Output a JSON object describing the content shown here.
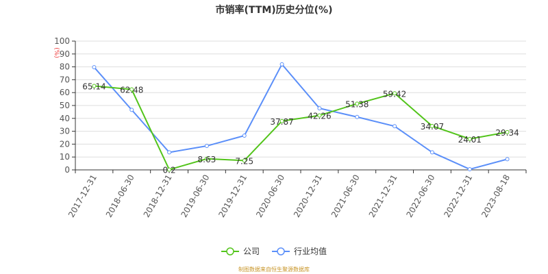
{
  "chart_data": {
    "type": "line",
    "title": "市销率(TTM)历史分位(%)",
    "ylabel": "(%)",
    "ylim": [
      0,
      100
    ],
    "yticks": [
      0,
      10,
      20,
      30,
      40,
      50,
      60,
      70,
      80,
      90,
      100
    ],
    "grid": true,
    "legend_position": "bottom",
    "categories": [
      "2017-12-31",
      "2018-06-30",
      "2018-12-31",
      "2019-06-30",
      "2019-12-31",
      "2020-06-30",
      "2020-12-31",
      "2021-06-30",
      "2021-12-31",
      "2022-06-30",
      "2022-12-31",
      "2023-08-18"
    ],
    "series": [
      {
        "name": "公司",
        "color": "#52c41a",
        "show_labels": true,
        "values": [
          65.14,
          62.48,
          0.2,
          8.63,
          7.25,
          37.87,
          42.26,
          51.38,
          59.42,
          34.07,
          24.01,
          29.34
        ]
      },
      {
        "name": "行业均值",
        "color": "#5b8ff9",
        "show_labels": false,
        "values": [
          79.7,
          46.6,
          13.6,
          18.6,
          26.6,
          82.0,
          47.8,
          41.1,
          33.9,
          13.6,
          0.5,
          8.3
        ]
      }
    ]
  },
  "source": "制图数据来自恒生聚源数据库"
}
